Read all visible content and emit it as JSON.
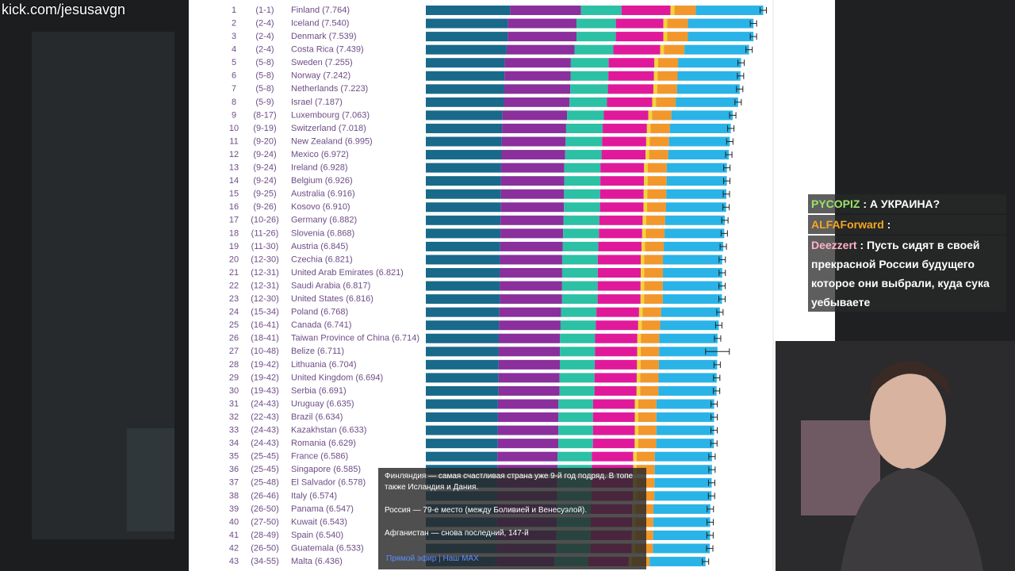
{
  "watermark": "kick.com/jesusavgn",
  "table": {
    "rows": [
      {
        "rank": 1,
        "range": "(1-1)",
        "label": "Finland (7.764)",
        "score": 7.764
      },
      {
        "rank": 2,
        "range": "(2-4)",
        "label": "Iceland (7.540)",
        "score": 7.54
      },
      {
        "rank": 3,
        "range": "(2-4)",
        "label": "Denmark (7.539)",
        "score": 7.539
      },
      {
        "rank": 4,
        "range": "(2-4)",
        "label": "Costa Rica (7.439)",
        "score": 7.439
      },
      {
        "rank": 5,
        "range": "(5-8)",
        "label": "Sweden (7.255)",
        "score": 7.255
      },
      {
        "rank": 6,
        "range": "(5-8)",
        "label": "Norway (7.242)",
        "score": 7.242
      },
      {
        "rank": 7,
        "range": "(5-8)",
        "label": "Netherlands (7.223)",
        "score": 7.223
      },
      {
        "rank": 8,
        "range": "(5-9)",
        "label": "Israel (7.187)",
        "score": 7.187
      },
      {
        "rank": 9,
        "range": "(8-17)",
        "label": "Luxembourg (7.063)",
        "score": 7.063
      },
      {
        "rank": 10,
        "range": "(9-19)",
        "label": "Switzerland (7.018)",
        "score": 7.018
      },
      {
        "rank": 11,
        "range": "(9-20)",
        "label": "New Zealand (6.995)",
        "score": 6.995
      },
      {
        "rank": 12,
        "range": "(9-24)",
        "label": "Mexico (6.972)",
        "score": 6.972
      },
      {
        "rank": 13,
        "range": "(9-24)",
        "label": "Ireland (6.928)",
        "score": 6.928
      },
      {
        "rank": 14,
        "range": "(9-24)",
        "label": "Belgium (6.926)",
        "score": 6.926
      },
      {
        "rank": 15,
        "range": "(9-25)",
        "label": "Australia (6.916)",
        "score": 6.916
      },
      {
        "rank": 16,
        "range": "(9-26)",
        "label": "Kosovo (6.910)",
        "score": 6.91
      },
      {
        "rank": 17,
        "range": "(10-26)",
        "label": "Germany (6.882)",
        "score": 6.882
      },
      {
        "rank": 18,
        "range": "(11-26)",
        "label": "Slovenia (6.868)",
        "score": 6.868
      },
      {
        "rank": 19,
        "range": "(11-30)",
        "label": "Austria (6.845)",
        "score": 6.845
      },
      {
        "rank": 20,
        "range": "(12-30)",
        "label": "Czechia (6.821)",
        "score": 6.821
      },
      {
        "rank": 21,
        "range": "(12-31)",
        "label": "United Arab Emirates (6.821)",
        "score": 6.821
      },
      {
        "rank": 22,
        "range": "(12-31)",
        "label": "Saudi Arabia (6.817)",
        "score": 6.817
      },
      {
        "rank": 23,
        "range": "(12-30)",
        "label": "United States (6.816)",
        "score": 6.816
      },
      {
        "rank": 24,
        "range": "(15-34)",
        "label": "Poland (6.768)",
        "score": 6.768
      },
      {
        "rank": 25,
        "range": "(16-41)",
        "label": "Canada (6.741)",
        "score": 6.741
      },
      {
        "rank": 26,
        "range": "(18-41)",
        "label": "Taiwan Province of China (6.714)",
        "score": 6.714
      },
      {
        "rank": 27,
        "range": "(10-48)",
        "label": "Belize (6.711)",
        "score": 6.711
      },
      {
        "rank": 28,
        "range": "(19-42)",
        "label": "Lithuania (6.704)",
        "score": 6.704
      },
      {
        "rank": 29,
        "range": "(19-42)",
        "label": "United Kingdom (6.694)",
        "score": 6.694
      },
      {
        "rank": 30,
        "range": "(19-43)",
        "label": "Serbia (6.691)",
        "score": 6.691
      },
      {
        "rank": 31,
        "range": "(24-43)",
        "label": "Uruguay (6.635)",
        "score": 6.635
      },
      {
        "rank": 32,
        "range": "(22-43)",
        "label": "Brazil (6.634)",
        "score": 6.634
      },
      {
        "rank": 33,
        "range": "(24-43)",
        "label": "Kazakhstan (6.633)",
        "score": 6.633
      },
      {
        "rank": 34,
        "range": "(24-43)",
        "label": "Romania (6.629)",
        "score": 6.629
      },
      {
        "rank": 35,
        "range": "(25-45)",
        "label": "France (6.586)",
        "score": 6.586
      },
      {
        "rank": 36,
        "range": "(25-45)",
        "label": "Singapore (6.585)",
        "score": 6.585
      },
      {
        "rank": 37,
        "range": "(25-48)",
        "label": "El Salvador (6.578)",
        "score": 6.578
      },
      {
        "rank": 38,
        "range": "(26-46)",
        "label": "Italy (6.574)",
        "score": 6.574
      },
      {
        "rank": 39,
        "range": "(26-50)",
        "label": "Panama (6.547)",
        "score": 6.547
      },
      {
        "rank": 40,
        "range": "(27-50)",
        "label": "Kuwait (6.543)",
        "score": 6.543
      },
      {
        "rank": 41,
        "range": "(28-49)",
        "label": "Spain (6.540)",
        "score": 6.54
      },
      {
        "rank": 42,
        "range": "(26-50)",
        "label": "Guatemala (6.533)",
        "score": 6.533
      },
      {
        "rank": 43,
        "range": "(34-55)",
        "label": "Malta (6.436)",
        "score": 6.436
      }
    ]
  },
  "chat": {
    "messages": [
      {
        "user": "PYCOPIZ",
        "text": ": А УКРАИНА?"
      },
      {
        "user": "ALFAForward",
        "text": ":"
      },
      {
        "user": "Deezzert",
        "text": ": Пусть сидят в своей прекрасной России будущего которое они выбрали, куда сука уебываете"
      }
    ]
  },
  "popup": {
    "lines": [
      "Финляндия — самая счастливая страна уже 9-й год подряд. В топе также Исландия и Дания.",
      "Россия — 79-е место (между Боливией и Венесуэлой).",
      "Афганистан — снова последний, 147-й"
    ],
    "footer": "Прямой эфир | Наш MAX"
  }
}
